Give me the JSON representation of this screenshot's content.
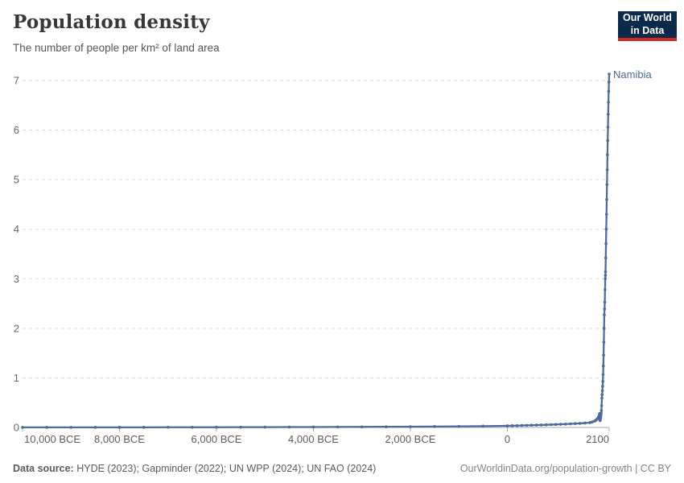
{
  "header": {
    "title": "Population density",
    "subtitle": "The number of people per km² of land area"
  },
  "logo": {
    "line1": "Our World",
    "line2": "in Data"
  },
  "annotations": {
    "series_label": "Namibia"
  },
  "chart_data": {
    "type": "line",
    "title": "Population density",
    "subtitle": "The number of people per km² of land area",
    "xlabel": "",
    "ylabel": "people per km² of land area",
    "xlim": [
      -10000,
      2100
    ],
    "ylim": [
      0,
      7.2
    ],
    "grid": "horizontal dashed",
    "legend_position": "end-of-line label",
    "x_ticks": [
      {
        "value": -10000,
        "label": "10,000 BCE"
      },
      {
        "value": -8000,
        "label": "8,000 BCE"
      },
      {
        "value": -6000,
        "label": "6,000 BCE"
      },
      {
        "value": -4000,
        "label": "4,000 BCE"
      },
      {
        "value": -2000,
        "label": "2,000 BCE"
      },
      {
        "value": 0,
        "label": "0"
      },
      {
        "value": 2100,
        "label": "2100"
      }
    ],
    "y_ticks": [
      0,
      1,
      2,
      3,
      4,
      5,
      6,
      7
    ],
    "series": [
      {
        "name": "Namibia",
        "color": "#4c6a9c",
        "points": [
          [
            -10000,
            0.002
          ],
          [
            -9500,
            0.002
          ],
          [
            -9000,
            0.002
          ],
          [
            -8500,
            0.003
          ],
          [
            -8000,
            0.003
          ],
          [
            -7500,
            0.003
          ],
          [
            -7000,
            0.004
          ],
          [
            -6500,
            0.004
          ],
          [
            -6000,
            0.005
          ],
          [
            -5500,
            0.006
          ],
          [
            -5000,
            0.007
          ],
          [
            -4500,
            0.008
          ],
          [
            -4000,
            0.009
          ],
          [
            -3500,
            0.01
          ],
          [
            -3000,
            0.012
          ],
          [
            -2500,
            0.014
          ],
          [
            -2000,
            0.016
          ],
          [
            -1500,
            0.019
          ],
          [
            -1000,
            0.022
          ],
          [
            -500,
            0.027
          ],
          [
            0,
            0.033
          ],
          [
            100,
            0.035
          ],
          [
            200,
            0.037
          ],
          [
            300,
            0.04
          ],
          [
            400,
            0.042
          ],
          [
            500,
            0.045
          ],
          [
            600,
            0.047
          ],
          [
            700,
            0.05
          ],
          [
            800,
            0.053
          ],
          [
            900,
            0.057
          ],
          [
            1000,
            0.06
          ],
          [
            1100,
            0.064
          ],
          [
            1200,
            0.068
          ],
          [
            1300,
            0.073
          ],
          [
            1400,
            0.078
          ],
          [
            1500,
            0.083
          ],
          [
            1600,
            0.09
          ],
          [
            1700,
            0.098
          ],
          [
            1750,
            0.11
          ],
          [
            1800,
            0.13
          ],
          [
            1820,
            0.14
          ],
          [
            1840,
            0.16
          ],
          [
            1860,
            0.18
          ],
          [
            1880,
            0.21
          ],
          [
            1890,
            0.23
          ],
          [
            1900,
            0.27
          ],
          [
            1904,
            0.28
          ],
          [
            1908,
            0.16
          ],
          [
            1912,
            0.14
          ],
          [
            1916,
            0.15
          ],
          [
            1920,
            0.18
          ],
          [
            1925,
            0.21
          ],
          [
            1930,
            0.25
          ],
          [
            1935,
            0.29
          ],
          [
            1940,
            0.34
          ],
          [
            1945,
            0.44
          ],
          [
            1950,
            0.59
          ],
          [
            1955,
            0.66
          ],
          [
            1960,
            0.74
          ],
          [
            1965,
            0.83
          ],
          [
            1970,
            0.93
          ],
          [
            1975,
            1.07
          ],
          [
            1980,
            1.24
          ],
          [
            1985,
            1.46
          ],
          [
            1990,
            1.72
          ],
          [
            1995,
            2.0
          ],
          [
            2000,
            2.27
          ],
          [
            2005,
            2.39
          ],
          [
            2010,
            2.53
          ],
          [
            2015,
            2.78
          ],
          [
            2020,
            3.0
          ],
          [
            2023,
            3.07
          ],
          [
            2025,
            3.14
          ],
          [
            2030,
            3.42
          ],
          [
            2035,
            3.71
          ],
          [
            2040,
            4.0
          ],
          [
            2045,
            4.3
          ],
          [
            2050,
            4.6
          ],
          [
            2055,
            4.9
          ],
          [
            2060,
            5.2
          ],
          [
            2065,
            5.5
          ],
          [
            2070,
            5.79
          ],
          [
            2075,
            6.06
          ],
          [
            2080,
            6.32
          ],
          [
            2085,
            6.56
          ],
          [
            2090,
            6.78
          ],
          [
            2095,
            6.97
          ],
          [
            2100,
            7.13
          ]
        ]
      }
    ]
  },
  "footer": {
    "source_label": "Data source:",
    "source_value": " HYDE (2023); Gapminder (2022); UN WPP (2024); UN FAO (2024)",
    "link": "OurWorldinData.org/population-growth | CC BY"
  },
  "colors": {
    "line": "#4c6a9c",
    "logo_bg": "#0b2a4a",
    "logo_red": "#d0291f",
    "grid": "#dedede",
    "axis": "#a9a9a9",
    "tick_text": "#5c5c5c"
  }
}
